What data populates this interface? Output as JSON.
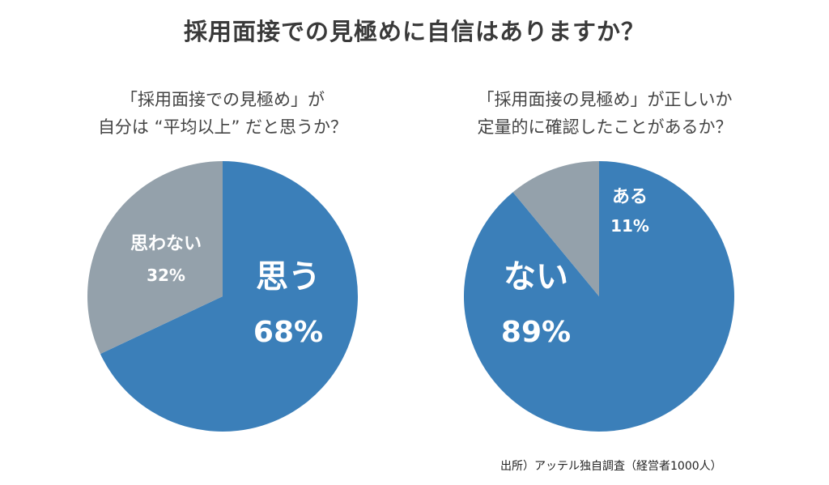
{
  "title": "採用面接での見極めに自信はありますか？",
  "source": "出所）アッテル独自調査（経営者1000人）",
  "colors": {
    "primary": "#3b7fb9",
    "secondary": "#94a1ab"
  },
  "chart_data": [
    {
      "type": "pie",
      "title_lines": [
        "「採用面接での見極め」が",
        "自分は “平均以上” だと思うか？"
      ],
      "slices": [
        {
          "label": "思う",
          "value": 68,
          "display": "68%"
        },
        {
          "label": "思わない",
          "value": 32,
          "display": "32%"
        }
      ]
    },
    {
      "type": "pie",
      "title_lines": [
        "「採用面接の見極め」が正しいか",
        "定量的に確認したことがあるか？"
      ],
      "slices": [
        {
          "label": "ない",
          "value": 89,
          "display": "89%"
        },
        {
          "label": "ある",
          "value": 11,
          "display": "11%"
        }
      ]
    }
  ]
}
